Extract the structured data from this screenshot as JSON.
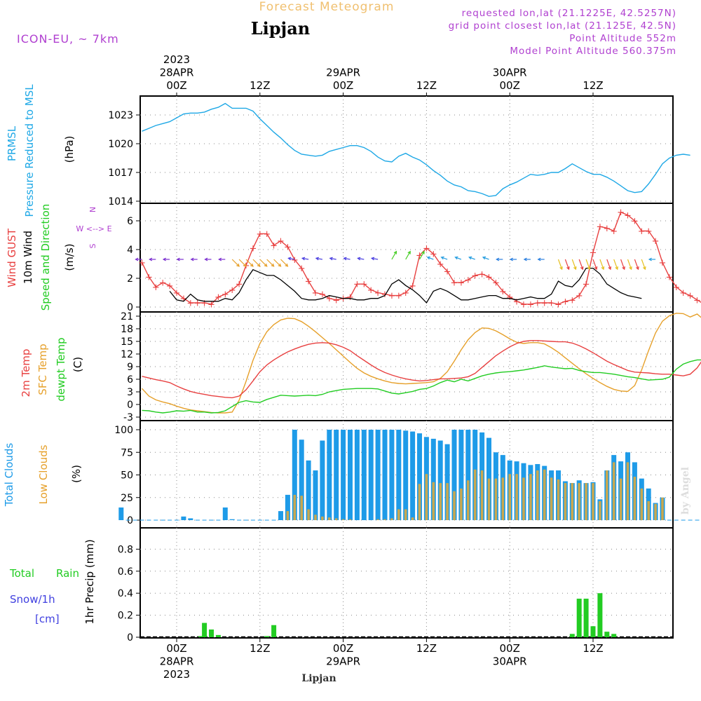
{
  "header": {
    "title_top": "Forecast Meteogram",
    "location": "Lipjan",
    "model": "ICON-EU, ~ 7km",
    "requested": "requested lon,lat (21.1225E, 42.5257N)",
    "grid_point": "grid point closest lon,lat (21.125E, 42.5N)",
    "point_altitude": "Point Altitude 552m",
    "model_altitude": "Model Point Altitude 560.375m",
    "footer_location": "Lipjan",
    "watermark": "by Angel"
  },
  "time_axis": {
    "hours_total": 76,
    "top_labels": [
      {
        "hour": 0,
        "lines": [
          "2023",
          "28APR",
          "00Z"
        ]
      },
      {
        "hour": 12,
        "lines": [
          "12Z"
        ]
      },
      {
        "hour": 24,
        "lines": [
          "29APR",
          "00Z"
        ]
      },
      {
        "hour": 36,
        "lines": [
          "12Z"
        ]
      },
      {
        "hour": 48,
        "lines": [
          "30APR",
          "00Z"
        ]
      },
      {
        "hour": 60,
        "lines": [
          "12Z"
        ]
      }
    ],
    "bottom_labels": [
      {
        "hour": 0,
        "lines": [
          "00Z",
          "28APR",
          "2023"
        ]
      },
      {
        "hour": 12,
        "lines": [
          "12Z"
        ]
      },
      {
        "hour": 24,
        "lines": [
          "00Z",
          "29APR"
        ]
      },
      {
        "hour": 36,
        "lines": [
          "12Z"
        ]
      },
      {
        "hour": 48,
        "lines": [
          "00Z",
          "30APR"
        ]
      },
      {
        "hour": 60,
        "lines": [
          "12Z"
        ]
      }
    ]
  },
  "panel_labels": {
    "pressure": [
      "PRMSL",
      "Pressure Reduced to MSL",
      "(hPa)"
    ],
    "wind": [
      "Wind GUST",
      "10m Wind",
      "Speed and Direction",
      "(m/s)"
    ],
    "compass": [
      "N",
      "W <--> E",
      "S"
    ],
    "temp": [
      "2m Temp",
      "SFC Temp",
      "dewpt Temp",
      "(C)"
    ],
    "clouds": [
      "Total Clouds",
      "Low Clouds",
      "(%)"
    ],
    "precip_legend": [
      "Total",
      "Rain",
      "Snow/1h",
      "[cm]"
    ],
    "precip_ylabel": "1hr Precip (mm)"
  },
  "colors": {
    "pressure": "#1ea8e6",
    "gust": "#e84040",
    "wind": "#000000",
    "temp2m": "#e84040",
    "sfc": "#e6a02a",
    "dew": "#22cc22",
    "total_clouds": "#1e9be8",
    "low_clouds": "#c8a850",
    "rain": "#22cc22",
    "purple": "#b040d0",
    "snow": "#4040e0",
    "title_top": "#f0c070"
  },
  "chart_data": [
    {
      "type": "line",
      "title": "PRMSL Pressure Reduced to MSL",
      "ylabel": "(hPa)",
      "ylim": [
        1014,
        1025
      ],
      "yticks": [
        1014,
        1017,
        1020,
        1023
      ],
      "x_start": -5,
      "x_step": 1,
      "series": [
        {
          "name": "PRMSL",
          "values": [
            1021.3,
            1021.6,
            1021.9,
            1022.1,
            1022.3,
            1022.7,
            1023.1,
            1023.2,
            1023.2,
            1023.3,
            1023.6,
            1023.8,
            1024.2,
            1023.7,
            1023.7,
            1023.7,
            1023.4,
            1022.6,
            1021.9,
            1021.2,
            1020.6,
            1019.9,
            1019.3,
            1018.9,
            1018.8,
            1018.7,
            1018.8,
            1019.2,
            1019.4,
            1019.6,
            1019.8,
            1019.8,
            1019.6,
            1019.2,
            1018.6,
            1018.2,
            1018.1,
            1018.7,
            1019.0,
            1018.6,
            1018.3,
            1017.8,
            1017.2,
            1016.7,
            1016.1,
            1015.7,
            1015.5,
            1015.1,
            1015.0,
            1014.8,
            1014.5,
            1014.6,
            1015.3,
            1015.7,
            1016.0,
            1016.4,
            1016.8,
            1016.7,
            1016.8,
            1017.0,
            1017.0,
            1017.4,
            1017.9,
            1017.5,
            1017.1,
            1016.8,
            1016.8,
            1016.5,
            1016.1,
            1015.6,
            1015.1,
            1014.9,
            1015.0,
            1015.8,
            1016.8,
            1017.9,
            1018.5,
            1018.8,
            1018.9,
            1018.8
          ]
        }
      ]
    },
    {
      "type": "line",
      "title": "Wind GUST / 10m Wind Speed and Direction",
      "ylabel": "(m/s)",
      "ylim": [
        -0.3,
        7.0
      ],
      "yticks": [
        0,
        2,
        4,
        6
      ],
      "x_start": -5,
      "x_step": 1,
      "series": [
        {
          "name": "Wind GUST",
          "values": [
            3.1,
            2.1,
            1.4,
            1.7,
            1.5,
            1.0,
            0.6,
            0.3,
            0.3,
            0.3,
            0.2,
            0.7,
            0.9,
            1.2,
            1.6,
            2.9,
            4.1,
            5.1,
            5.1,
            4.3,
            4.6,
            4.2,
            3.3,
            2.7,
            1.8,
            1.0,
            0.9,
            0.6,
            0.5,
            0.6,
            0.7,
            1.6,
            1.6,
            1.2,
            1.0,
            0.9,
            0.8,
            0.8,
            1.0,
            1.5,
            3.6,
            4.1,
            3.7,
            3.0,
            2.5,
            1.7,
            1.7,
            1.9,
            2.2,
            2.3,
            2.1,
            1.7,
            1.1,
            0.7,
            0.4,
            0.2,
            0.2,
            0.3,
            0.3,
            0.3,
            0.2,
            0.4,
            0.5,
            0.8,
            1.6,
            3.8,
            5.6,
            5.5,
            5.3,
            6.6,
            6.4,
            6.0,
            5.3,
            5.3,
            4.6,
            3.1,
            2.1,
            1.4,
            1.0,
            0.8,
            0.5,
            0.2
          ]
        },
        {
          "name": "10m Wind",
          "values": [
            1.1,
            0.5,
            0.4,
            0.9,
            0.5,
            0.4,
            0.4,
            0.4,
            0.6,
            0.5,
            1.0,
            1.9,
            2.6,
            2.4,
            2.2,
            2.2,
            1.9,
            1.5,
            1.1,
            0.6,
            0.5,
            0.5,
            0.6,
            0.8,
            0.7,
            0.6,
            0.6,
            0.5,
            0.5,
            0.6,
            0.6,
            0.8,
            1.6,
            1.9,
            1.5,
            1.2,
            0.8,
            0.3,
            1.1,
            1.3,
            1.1,
            0.8,
            0.5,
            0.5,
            0.6,
            0.7,
            0.8,
            0.8,
            0.6,
            0.6,
            0.5,
            0.6,
            0.7,
            0.6,
            0.6,
            0.9,
            1.8,
            1.5,
            1.4,
            1.9,
            2.7,
            2.7,
            2.3,
            1.6,
            1.3,
            1.0,
            0.8,
            0.7,
            0.6
          ]
        }
      ]
    },
    {
      "type": "line",
      "title": "2m Temp / SFC Temp / dewpt Temp",
      "ylabel": "(C)",
      "ylim": [
        -4,
        23
      ],
      "yticks": [
        -3,
        0,
        3,
        6,
        9,
        12,
        15,
        18,
        21
      ],
      "x_start": -5,
      "x_step": 1,
      "series": [
        {
          "name": "2m Temp",
          "values": [
            6.7,
            6.3,
            5.9,
            5.6,
            5.2,
            4.4,
            3.7,
            3.1,
            2.7,
            2.4,
            2.1,
            1.9,
            1.7,
            1.6,
            2.0,
            3.5,
            5.6,
            7.8,
            9.4,
            10.6,
            11.6,
            12.5,
            13.2,
            13.8,
            14.3,
            14.6,
            14.7,
            14.6,
            14.2,
            13.6,
            12.8,
            11.6,
            10.5,
            9.4,
            8.4,
            7.6,
            7.0,
            6.5,
            6.1,
            5.8,
            5.6,
            5.7,
            5.9,
            6.1,
            6.1,
            6.2,
            6.3,
            6.6,
            7.4,
            8.8,
            10.2,
            11.6,
            12.7,
            13.7,
            14.5,
            15.0,
            15.2,
            15.2,
            15.1,
            15.0,
            14.9,
            14.9,
            14.6,
            14.0,
            13.2,
            12.3,
            11.3,
            10.3,
            9.5,
            8.8,
            8.1,
            7.7,
            7.6,
            7.5,
            7.3,
            7.2,
            7.2,
            7.0,
            6.8,
            7.2,
            8.7,
            11.1,
            13.5,
            14.8,
            15.1,
            15.6,
            16.4,
            16.2,
            16.6,
            16.7,
            16.4,
            15.5,
            14.1,
            12.3,
            10.5,
            9.0,
            8.0,
            7.3,
            6.8
          ]
        },
        {
          "name": "SFC Temp",
          "values": [
            3.8,
            2.0,
            1.1,
            0.6,
            0.2,
            -0.4,
            -0.9,
            -1.3,
            -1.5,
            -1.7,
            -1.9,
            -2.0,
            -2.0,
            -1.8,
            1.0,
            5.5,
            10.5,
            14.5,
            17.3,
            19.0,
            20.1,
            20.5,
            20.4,
            19.7,
            18.6,
            17.3,
            15.9,
            14.5,
            13.0,
            11.5,
            10.0,
            8.6,
            7.5,
            6.7,
            6.1,
            5.6,
            5.2,
            5.0,
            4.9,
            5.0,
            5.1,
            5.2,
            5.4,
            6.2,
            7.8,
            10.3,
            13.0,
            15.4,
            17.1,
            18.2,
            18.1,
            17.5,
            16.6,
            15.6,
            14.8,
            14.5,
            14.7,
            14.7,
            14.4,
            13.5,
            12.4,
            11.1,
            9.8,
            8.5,
            7.3,
            6.2,
            5.2,
            4.3,
            3.6,
            3.2,
            3.1,
            4.5,
            8.2,
            12.8,
            17.0,
            19.8,
            21.1,
            21.7,
            21.6,
            20.8,
            21.5,
            20.1,
            18.1,
            15.8,
            13.3,
            10.9,
            8.7,
            7.0,
            5.8,
            4.9,
            4.2,
            3.7
          ]
        },
        {
          "name": "dewpt Temp",
          "values": [
            -1.4,
            -1.5,
            -1.8,
            -2.0,
            -1.8,
            -1.5,
            -1.6,
            -1.4,
            -1.8,
            -1.8,
            -2.0,
            -1.9,
            -1.5,
            -0.5,
            0.5,
            0.9,
            0.6,
            0.5,
            1.2,
            1.7,
            2.2,
            2.1,
            2.0,
            2.1,
            2.2,
            2.1,
            2.4,
            3.0,
            3.3,
            3.6,
            3.7,
            3.8,
            3.8,
            3.8,
            3.7,
            3.2,
            2.7,
            2.5,
            2.8,
            3.1,
            3.6,
            3.8,
            4.4,
            5.2,
            5.8,
            5.4,
            6.0,
            5.6,
            6.2,
            6.8,
            7.2,
            7.5,
            7.7,
            7.8,
            8.0,
            8.2,
            8.5,
            8.8,
            9.2,
            8.9,
            8.7,
            8.5,
            8.6,
            8.1,
            7.8,
            7.6,
            7.6,
            7.4,
            7.2,
            6.9,
            6.6,
            6.4,
            6.1,
            5.8,
            5.9,
            6.0,
            6.5,
            8.4,
            9.6,
            10.2,
            10.6,
            10.6,
            10.3,
            9.8,
            9.6,
            9.8,
            8.9,
            8.3,
            8.3,
            8.2,
            8.0,
            7.6,
            7.3,
            7.0,
            6.8,
            6.5,
            6.3
          ]
        }
      ]
    },
    {
      "type": "bar",
      "title": "Total Clouds / Low Clouds",
      "ylabel": "(%)",
      "ylim": [
        -5,
        105
      ],
      "yticks": [
        0,
        25,
        50,
        75,
        100
      ],
      "x_start": -8,
      "x_step": 1,
      "series": [
        {
          "name": "Total Clouds",
          "values": [
            14,
            0,
            0,
            0,
            0,
            0,
            0,
            0,
            0,
            4,
            2,
            0,
            0,
            0,
            0,
            14,
            1,
            0,
            0,
            0,
            0,
            0,
            0,
            10,
            28,
            100,
            89,
            66,
            55,
            88,
            100,
            100,
            100,
            100,
            100,
            100,
            100,
            100,
            100,
            100,
            100,
            99,
            98,
            96,
            92,
            90,
            88,
            84,
            100,
            100,
            100,
            100,
            97,
            91,
            75,
            72,
            66,
            65,
            63,
            61,
            62,
            60,
            55,
            55,
            43,
            41,
            44,
            41,
            42,
            23,
            55,
            72,
            65,
            75,
            64,
            46,
            35,
            19,
            25,
            0,
            0,
            0,
            0,
            0,
            0,
            15,
            45
          ]
        },
        {
          "name": "Low Clouds",
          "values": [
            0,
            0,
            0,
            0,
            0,
            0,
            0,
            0,
            0,
            0,
            0,
            0,
            0,
            0,
            0,
            0,
            0,
            0,
            0,
            0,
            0,
            0,
            0,
            0,
            10,
            28,
            27,
            12,
            6,
            4,
            3,
            2,
            1,
            1,
            0,
            0,
            0,
            1,
            1,
            2,
            12,
            12,
            3,
            40,
            51,
            42,
            41,
            41,
            32,
            35,
            44,
            56,
            55,
            46,
            46,
            47,
            51,
            51,
            47,
            51,
            55,
            56,
            47,
            45,
            41,
            41,
            41,
            41,
            41,
            21,
            55,
            64,
            46,
            64,
            48,
            35,
            21,
            18,
            25,
            0,
            0,
            0,
            0,
            0,
            0,
            15,
            45
          ]
        }
      ]
    },
    {
      "type": "bar",
      "title": "1hr Precip",
      "ylabel": "1hr Precip (mm)",
      "ylim": [
        0,
        1.0
      ],
      "yticks": [
        0,
        0.2,
        0.4,
        0.6,
        0.8
      ],
      "series": [
        {
          "name": "Total Rain",
          "points": [
            {
              "hour": 3.5,
              "value": 0.01
            },
            {
              "hour": 4,
              "value": 0.13
            },
            {
              "hour": 5,
              "value": 0.07
            },
            {
              "hour": 6,
              "value": 0.02
            },
            {
              "hour": 13,
              "value": 0.01
            },
            {
              "hour": 14,
              "value": 0.11
            },
            {
              "hour": 57,
              "value": 0.03
            },
            {
              "hour": 58,
              "value": 0.35
            },
            {
              "hour": 59,
              "value": 0.35
            },
            {
              "hour": 60,
              "value": 0.1
            },
            {
              "hour": 61,
              "value": 0.4
            },
            {
              "hour": 62,
              "value": 0.05
            },
            {
              "hour": 63,
              "value": 0.03
            }
          ]
        }
      ]
    }
  ]
}
